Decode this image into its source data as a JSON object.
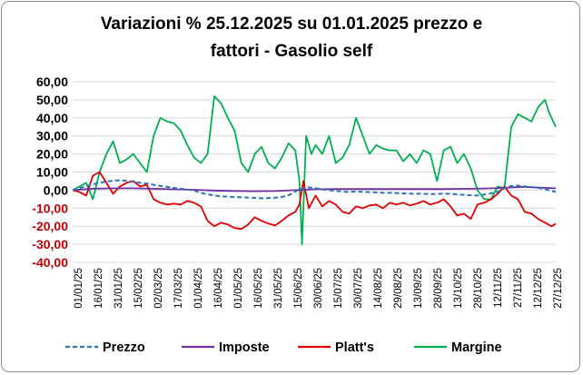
{
  "title_line_1": "Variazioni % 25.12.2025 su 01.01.2025 prezzo e",
  "title_line_2": "fattori - Gasolio self",
  "chart_data": {
    "type": "line",
    "title": "Variazioni % 25.12.2025 su 01.01.2025 prezzo e fattori - Gasolio self",
    "xlabel": "",
    "ylabel": "",
    "ylim": [
      -40,
      60
    ],
    "grid": "horizontal",
    "legend_position": "bottom",
    "ytick_labels": [
      "60,00",
      "50,00",
      "40,00",
      "30,00",
      "20,00",
      "10,00",
      "0,00",
      "-10,00",
      "-20,00",
      "-30,00",
      "-40,00"
    ],
    "ytick_values": [
      60,
      50,
      40,
      30,
      20,
      10,
      0,
      -10,
      -20,
      -30,
      -40
    ],
    "ytick_colors": {
      "positive": "#000000",
      "negative": "#c00000"
    },
    "xtick_labels": [
      "01/01/25",
      "16/01/25",
      "31/01/25",
      "15/02/25",
      "02/03/25",
      "17/03/25",
      "01/04/25",
      "16/04/25",
      "01/05/25",
      "16/05/25",
      "31/05/25",
      "15/06/25",
      "30/06/25",
      "15/07/25",
      "30/07/25",
      "14/08/25",
      "29/08/25",
      "13/09/25",
      "28/09/25",
      "13/10/25",
      "28/10/25",
      "12/11/25",
      "27/11/25",
      "12/12/25",
      "27/12/25"
    ],
    "x_range": [
      "01/01/25",
      "25/12/25"
    ],
    "series": [
      {
        "name": "Prezzo",
        "color": "#2e75b6",
        "style": "dashed",
        "x": [
          "01/01/25",
          "08/01/25",
          "15/01/25",
          "22/01/25",
          "29/01/25",
          "05/02/25",
          "12/02/25",
          "19/02/25",
          "26/02/25",
          "05/03/25",
          "12/03/25",
          "19/03/25",
          "26/03/25",
          "02/04/25",
          "09/04/25",
          "16/04/25",
          "23/04/25",
          "30/04/25",
          "07/05/25",
          "14/05/25",
          "21/05/25",
          "28/05/25",
          "04/06/25",
          "11/06/25",
          "18/06/25",
          "25/06/25",
          "02/07/25",
          "09/07/25",
          "16/07/25",
          "23/07/25",
          "30/07/25",
          "06/08/25",
          "13/08/25",
          "20/08/25",
          "27/08/25",
          "03/09/25",
          "10/09/25",
          "17/09/25",
          "24/09/25",
          "01/10/25",
          "08/10/25",
          "15/10/25",
          "22/10/25",
          "29/10/25",
          "05/11/25",
          "12/11/25",
          "19/11/25",
          "26/11/25",
          "03/12/25",
          "10/12/25",
          "17/12/25",
          "25/12/25"
        ],
        "values": [
          0.0,
          1.5,
          3.0,
          4.2,
          5.0,
          5.5,
          5.0,
          4.2,
          3.5,
          2.5,
          1.8,
          1.0,
          0.5,
          -0.5,
          -2.0,
          -3.0,
          -3.5,
          -3.8,
          -4.0,
          -4.2,
          -4.5,
          -4.3,
          -4.0,
          -2.5,
          0.5,
          1.5,
          0.8,
          0.0,
          -0.5,
          -1.0,
          -0.8,
          -1.0,
          -1.2,
          -1.5,
          -1.5,
          -1.8,
          -2.0,
          -2.0,
          -2.2,
          -2.0,
          -2.0,
          -2.5,
          -2.8,
          -3.0,
          -2.0,
          -1.0,
          2.0,
          2.5,
          2.0,
          1.5,
          0.5,
          -1.0
        ]
      },
      {
        "name": "Imposte",
        "color": "#7030a0",
        "style": "solid",
        "x": [
          "01/01/25",
          "15/01/25",
          "01/02/25",
          "15/02/25",
          "01/03/25",
          "15/03/25",
          "01/04/25",
          "15/04/25",
          "01/05/25",
          "15/05/25",
          "01/06/25",
          "15/06/25",
          "01/07/25",
          "15/07/25",
          "01/08/25",
          "15/08/25",
          "01/09/25",
          "15/09/25",
          "01/10/25",
          "15/10/25",
          "01/11/25",
          "15/11/25",
          "01/12/25",
          "15/12/25",
          "25/12/25"
        ],
        "values": [
          0.0,
          0.8,
          1.0,
          1.0,
          0.8,
          0.5,
          0.2,
          -0.2,
          -0.5,
          -0.6,
          -0.5,
          0.0,
          0.5,
          0.6,
          0.6,
          0.6,
          0.6,
          0.6,
          0.6,
          0.7,
          0.9,
          1.2,
          1.8,
          1.3,
          1.0
        ]
      },
      {
        "name": "Platt's",
        "color": "#e00000",
        "style": "solid",
        "x": [
          "01/01/25",
          "06/01/25",
          "11/01/25",
          "16/01/25",
          "21/01/25",
          "26/01/25",
          "31/01/25",
          "05/02/25",
          "10/02/25",
          "15/02/25",
          "20/02/25",
          "25/02/25",
          "02/03/25",
          "07/03/25",
          "12/03/25",
          "17/03/25",
          "22/03/25",
          "27/03/25",
          "01/04/25",
          "06/04/25",
          "11/04/25",
          "16/04/25",
          "21/04/25",
          "26/04/25",
          "01/05/25",
          "06/05/25",
          "11/05/25",
          "16/05/25",
          "21/05/25",
          "26/05/25",
          "31/05/25",
          "05/06/25",
          "10/06/25",
          "15/06/25",
          "18/06/25",
          "21/06/25",
          "25/06/25",
          "30/06/25",
          "05/07/25",
          "10/07/25",
          "15/07/25",
          "20/07/25",
          "25/07/25",
          "30/07/25",
          "04/08/25",
          "09/08/25",
          "14/08/25",
          "19/08/25",
          "24/08/25",
          "29/08/25",
          "03/09/25",
          "08/09/25",
          "13/09/25",
          "18/09/25",
          "23/09/25",
          "28/09/25",
          "03/10/25",
          "08/10/25",
          "13/10/25",
          "18/10/25",
          "23/10/25",
          "28/10/25",
          "02/11/25",
          "07/11/25",
          "12/11/25",
          "17/11/25",
          "22/11/25",
          "27/11/25",
          "02/12/25",
          "07/12/25",
          "12/12/25",
          "17/12/25",
          "22/12/25",
          "25/12/25"
        ],
        "values": [
          0.0,
          -1.0,
          -3.0,
          8.0,
          10.0,
          4.0,
          -2.0,
          2.0,
          4.0,
          5.0,
          2.0,
          3.0,
          -5.0,
          -7.0,
          -8.0,
          -7.5,
          -8.0,
          -6.0,
          -7.0,
          -9.0,
          -17.0,
          -20.0,
          -18.0,
          -19.0,
          -21.0,
          -21.5,
          -19.0,
          -15.0,
          -17.0,
          -18.5,
          -19.5,
          -17.0,
          -14.0,
          -12.0,
          -8.0,
          5.0,
          -10.0,
          -3.0,
          -9.0,
          -6.0,
          -8.0,
          -12.0,
          -13.0,
          -9.0,
          -10.0,
          -8.5,
          -8.0,
          -10.0,
          -7.0,
          -8.0,
          -7.0,
          -8.5,
          -7.5,
          -6.0,
          -8.0,
          -7.0,
          -5.0,
          -9.0,
          -14.0,
          -13.0,
          -16.0,
          -8.0,
          -7.0,
          -5.0,
          -2.0,
          2.0,
          -3.0,
          -5.0,
          -12.0,
          -13.0,
          -16.0,
          -18.0,
          -20.0,
          -18.5
        ]
      },
      {
        "name": "Margine",
        "color": "#00b050",
        "style": "solid",
        "x": [
          "01/01/25",
          "06/01/25",
          "11/01/25",
          "16/01/25",
          "21/01/25",
          "26/01/25",
          "31/01/25",
          "05/02/25",
          "10/02/25",
          "15/02/25",
          "20/02/25",
          "25/02/25",
          "02/03/25",
          "07/03/25",
          "12/03/25",
          "17/03/25",
          "22/03/25",
          "27/03/25",
          "01/04/25",
          "06/04/25",
          "11/04/25",
          "16/04/25",
          "21/04/25",
          "26/04/25",
          "01/05/25",
          "06/05/25",
          "11/05/25",
          "16/05/25",
          "21/05/25",
          "26/05/25",
          "31/05/25",
          "05/06/25",
          "10/06/25",
          "15/06/25",
          "18/06/25",
          "20/06/25",
          "23/06/25",
          "27/06/25",
          "30/06/25",
          "05/07/25",
          "10/07/25",
          "15/07/25",
          "20/07/25",
          "25/07/25",
          "30/07/25",
          "04/08/25",
          "09/08/25",
          "14/08/25",
          "19/08/25",
          "24/08/25",
          "29/08/25",
          "03/09/25",
          "08/09/25",
          "13/09/25",
          "18/09/25",
          "23/09/25",
          "28/09/25",
          "03/10/25",
          "08/10/25",
          "13/10/25",
          "18/10/25",
          "23/10/25",
          "28/10/25",
          "02/11/25",
          "07/11/25",
          "12/11/25",
          "17/11/25",
          "22/11/25",
          "27/11/25",
          "02/12/25",
          "07/12/25",
          "12/12/25",
          "17/12/25",
          "20/12/25",
          "25/12/25"
        ],
        "values": [
          0.0,
          2.0,
          4.0,
          -5.0,
          10.0,
          20.0,
          27.0,
          15.0,
          17.0,
          20.0,
          15.0,
          10.0,
          30.0,
          40.0,
          38.0,
          37.0,
          33.0,
          25.0,
          18.0,
          15.0,
          20.0,
          52.0,
          48.0,
          40.0,
          33.0,
          15.0,
          10.0,
          20.0,
          24.0,
          15.0,
          12.0,
          18.0,
          26.0,
          22.0,
          5.0,
          -30.0,
          30.0,
          20.0,
          25.0,
          20.0,
          30.0,
          15.0,
          18.0,
          25.0,
          40.0,
          30.0,
          20.0,
          25.0,
          23.0,
          22.0,
          22.0,
          16.0,
          20.0,
          15.0,
          22.0,
          20.0,
          5.0,
          22.0,
          24.0,
          15.0,
          20.0,
          12.0,
          0.0,
          -5.0,
          -5.0,
          2.0,
          1.0,
          35.0,
          42.0,
          40.0,
          38.0,
          46.0,
          50.0,
          43.0,
          35.0
        ]
      }
    ]
  }
}
